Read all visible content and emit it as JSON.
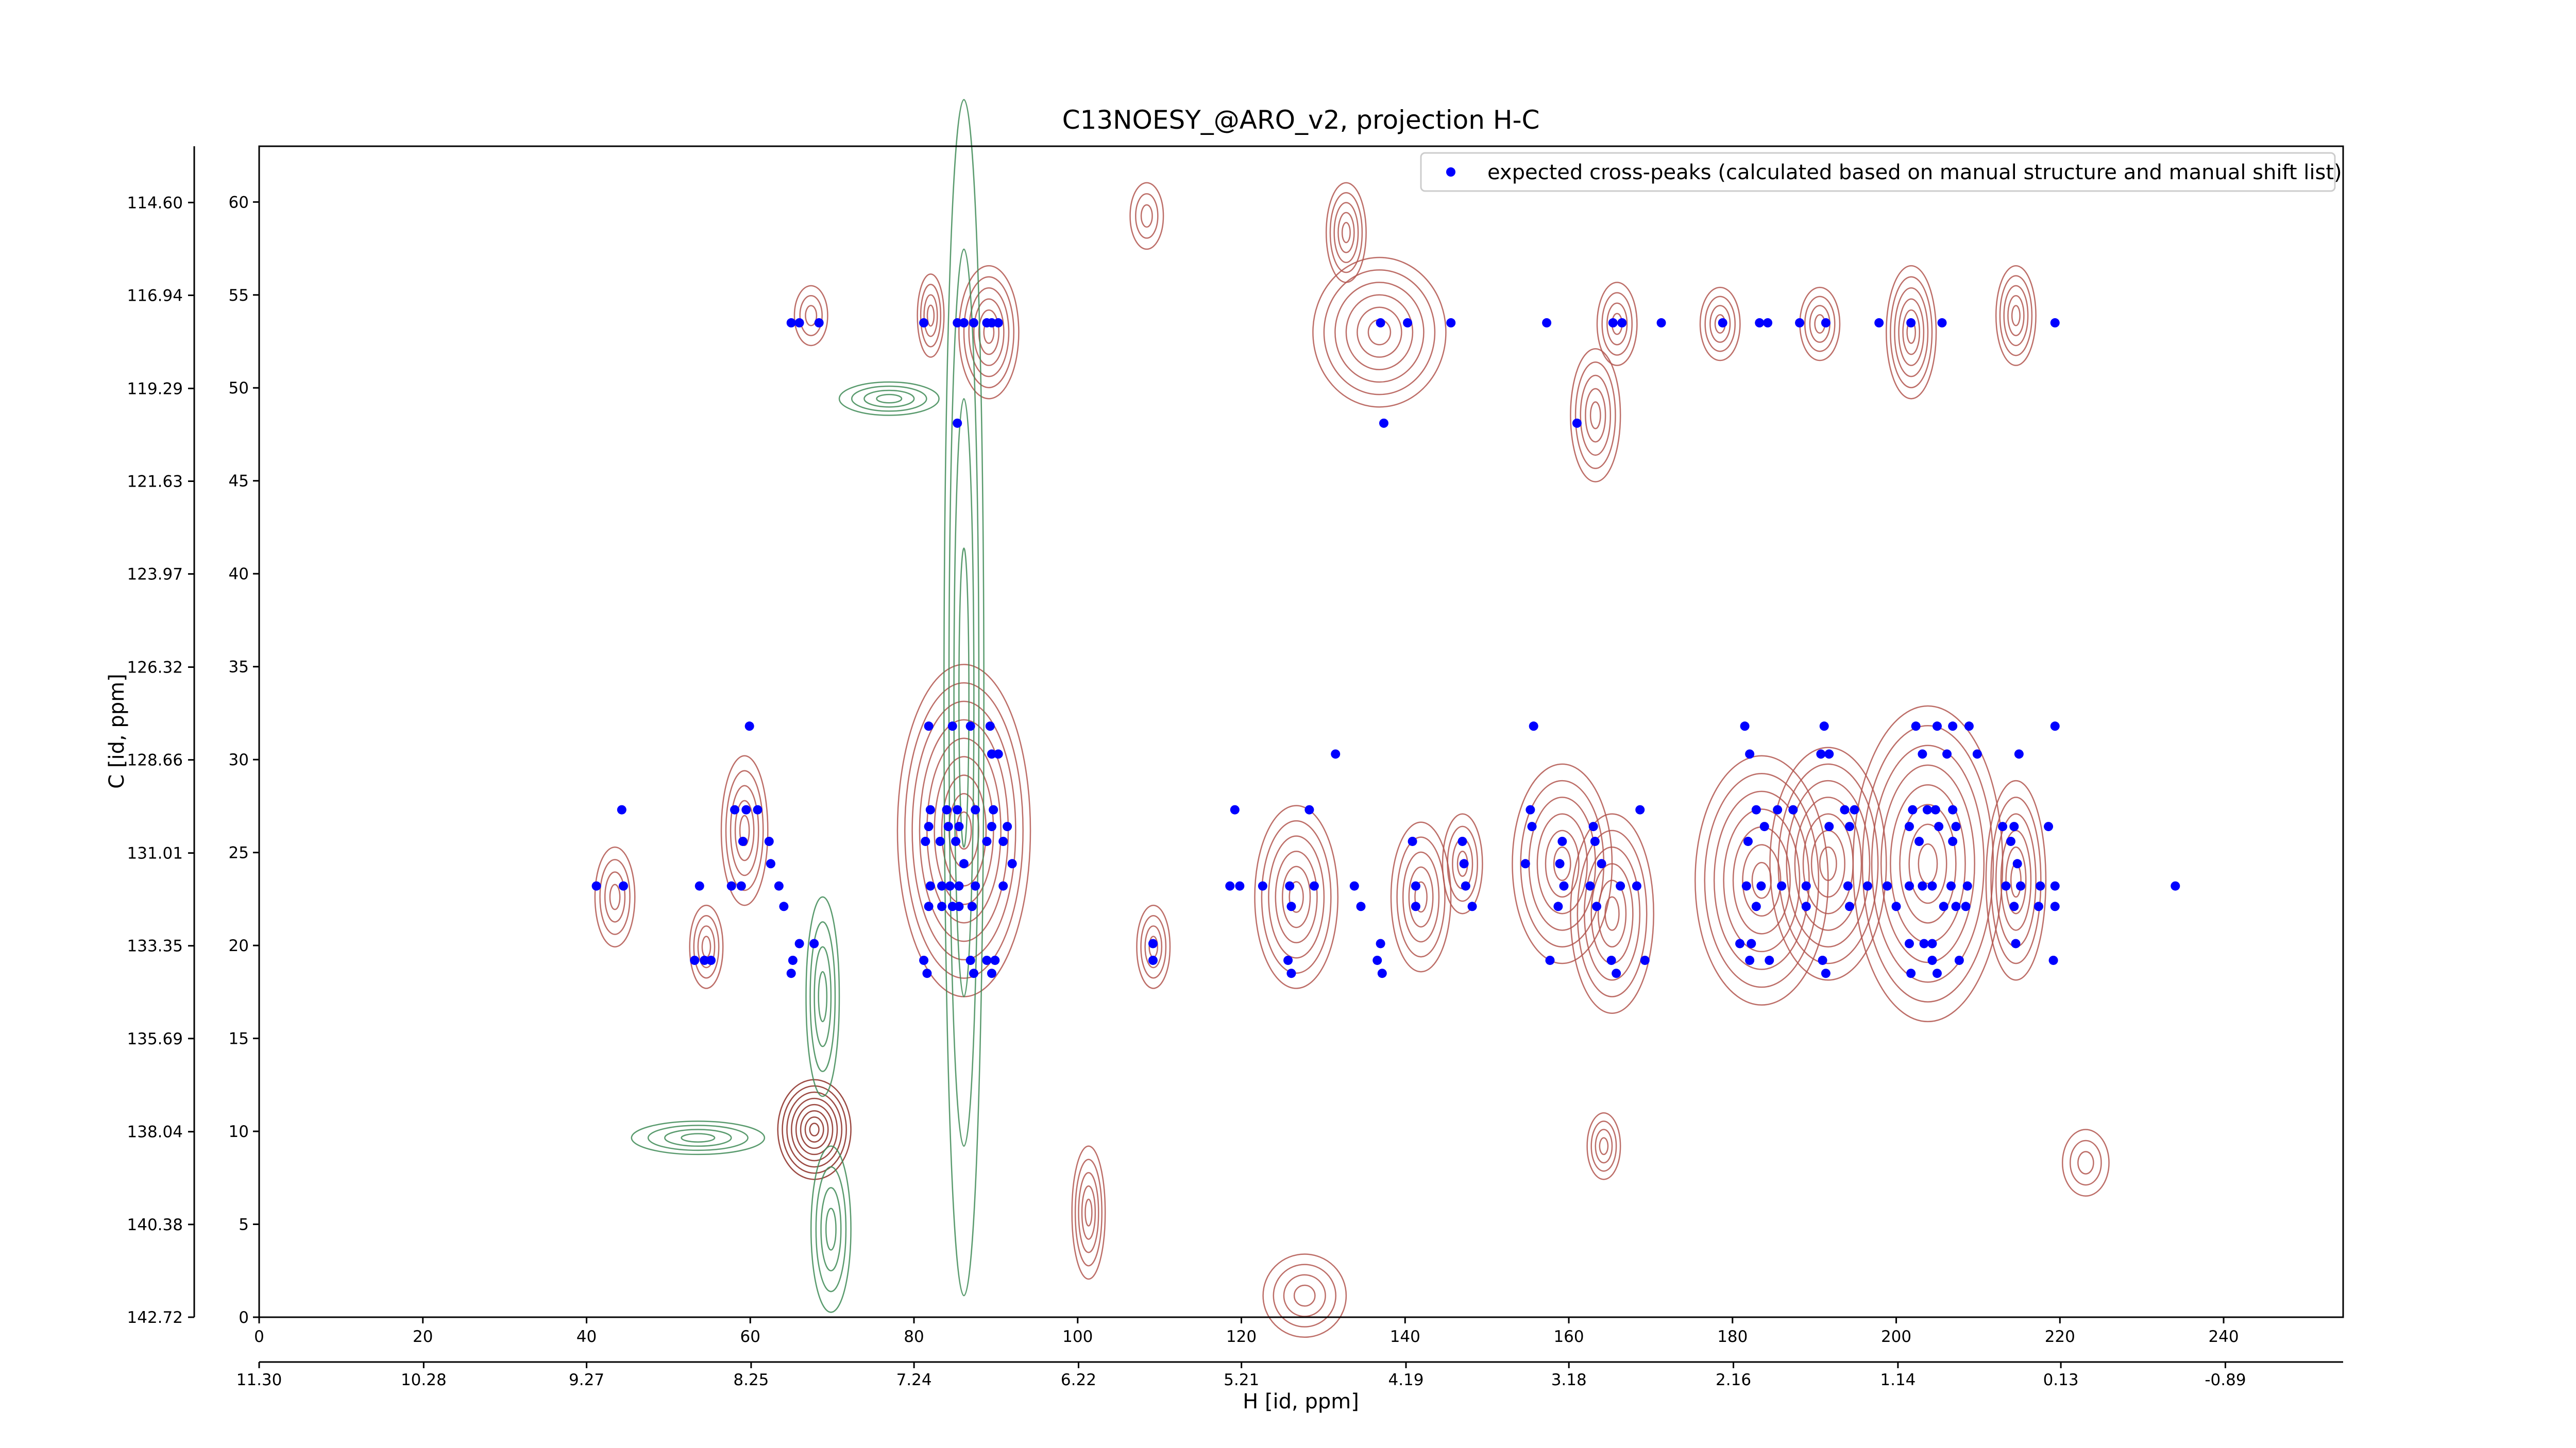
{
  "chart_data": {
    "type": "scatter",
    "title": "C13NOESY_@ARO_v2, projection H-C",
    "x_label": "H [id, ppm]",
    "y_label": "C [id, ppm]",
    "xlim": [
      0,
      254.6
    ],
    "xticks": [
      0,
      20,
      40,
      60,
      80,
      100,
      120,
      140,
      160,
      180,
      200,
      220,
      240
    ],
    "ylim": [
      0,
      63
    ],
    "yticks": [
      0,
      5,
      10,
      15,
      20,
      25,
      30,
      35,
      40,
      45,
      50,
      55,
      60
    ],
    "x2lim": [
      11.3,
      -1.62
    ],
    "x2ticks": [
      {
        "value": 11.3,
        "label": "11.30"
      },
      10.28,
      9.27,
      8.25,
      7.24,
      6.22,
      5.21,
      4.19,
      3.18,
      2.16,
      1.14,
      0.13,
      -0.89
    ],
    "y2lim": [
      142.72,
      113.18
    ],
    "y2ticks": [
      {
        "value": 114.6,
        "label": "114.60"
      },
      116.94,
      119.29,
      121.63,
      123.97,
      126.32,
      128.66,
      131.01,
      133.35,
      135.69,
      138.04,
      140.38,
      142.72
    ],
    "legend": "upper right",
    "series": [
      {
        "name": "expected cross-peaks (calculated based on manual structure and manual shift list)",
        "color": "#0000ff",
        "x": [
          65.0,
          66.0,
          68.4,
          81.2,
          85.3,
          86.1,
          87.3,
          88.9,
          89.5,
          90.3,
          137.0,
          140.3,
          145.6,
          157.3,
          165.4,
          166.5,
          171.3,
          178.8,
          183.3,
          184.3,
          188.2,
          191.4,
          197.9,
          201.8,
          205.6,
          219.4,
          85.3,
          137.4,
          161.0,
          59.9,
          81.8,
          84.7,
          86.9,
          89.3,
          155.7,
          181.5,
          191.2,
          202.4,
          205.0,
          206.9,
          208.9,
          219.4,
          89.5,
          90.3,
          131.5,
          182.1,
          190.8,
          191.8,
          203.2,
          206.2,
          209.9,
          215.0,
          44.3,
          58.1,
          59.5,
          60.9,
          82.0,
          84.0,
          85.3,
          87.5,
          89.7,
          119.2,
          128.3,
          155.3,
          168.7,
          182.9,
          185.5,
          187.4,
          193.7,
          194.9,
          202.0,
          203.8,
          204.8,
          206.9,
          81.8,
          84.2,
          85.5,
          89.5,
          91.4,
          155.5,
          163.0,
          183.9,
          191.8,
          194.3,
          201.6,
          205.2,
          207.3,
          213.0,
          214.4,
          218.6,
          59.1,
          62.3,
          81.4,
          83.2,
          85.1,
          88.9,
          90.9,
          140.9,
          147.0,
          159.2,
          163.2,
          181.9,
          202.8,
          206.9,
          214.0,
          62.5,
          86.1,
          92.0,
          147.2,
          154.7,
          158.9,
          164.0,
          214.8,
          41.2,
          44.5,
          53.8,
          57.7,
          58.9,
          63.5,
          82.0,
          83.4,
          84.4,
          85.5,
          87.5,
          90.9,
          118.6,
          119.8,
          122.6,
          125.9,
          128.9,
          133.8,
          141.3,
          147.4,
          159.4,
          162.6,
          166.3,
          168.3,
          181.7,
          183.5,
          186.0,
          189.0,
          194.1,
          196.5,
          198.9,
          201.6,
          203.2,
          204.4,
          206.7,
          208.7,
          213.4,
          215.2,
          217.6,
          219.4,
          234.1,
          64.1,
          81.8,
          83.4,
          84.7,
          85.5,
          87.1,
          126.1,
          134.6,
          141.3,
          148.2,
          158.7,
          163.4,
          182.9,
          189.0,
          194.3,
          200.0,
          205.8,
          207.3,
          208.5,
          214.4,
          217.4,
          219.4,
          66.0,
          67.8,
          109.2,
          137.0,
          180.9,
          182.3,
          201.6,
          203.4,
          204.4,
          214.6,
          53.2,
          54.4,
          55.2,
          65.2,
          81.2,
          86.9,
          88.9,
          89.9,
          109.2,
          125.7,
          136.6,
          157.7,
          165.2,
          169.3,
          182.1,
          184.5,
          191.0,
          204.4,
          207.7,
          219.2,
          65.0,
          81.6,
          87.3,
          89.5,
          126.1,
          137.2,
          165.8,
          191.4,
          201.8,
          205.0
        ],
        "values": [
          53.5,
          53.5,
          53.5,
          53.5,
          53.5,
          53.5,
          53.5,
          53.5,
          53.5,
          53.5,
          53.5,
          53.5,
          53.5,
          53.5,
          53.5,
          53.5,
          53.5,
          53.5,
          53.5,
          53.5,
          53.5,
          53.5,
          53.5,
          53.5,
          53.5,
          53.5,
          48.1,
          48.1,
          48.1,
          31.8,
          31.8,
          31.8,
          31.8,
          31.8,
          31.8,
          31.8,
          31.8,
          31.8,
          31.8,
          31.8,
          31.8,
          31.8,
          30.3,
          30.3,
          30.3,
          30.3,
          30.3,
          30.3,
          30.3,
          30.3,
          30.3,
          30.3,
          27.3,
          27.3,
          27.3,
          27.3,
          27.3,
          27.3,
          27.3,
          27.3,
          27.3,
          27.3,
          27.3,
          27.3,
          27.3,
          27.3,
          27.3,
          27.3,
          27.3,
          27.3,
          27.3,
          27.3,
          27.3,
          27.3,
          26.4,
          26.4,
          26.4,
          26.4,
          26.4,
          26.4,
          26.4,
          26.4,
          26.4,
          26.4,
          26.4,
          26.4,
          26.4,
          26.4,
          26.4,
          26.4,
          25.6,
          25.6,
          25.6,
          25.6,
          25.6,
          25.6,
          25.6,
          25.6,
          25.6,
          25.6,
          25.6,
          25.6,
          25.6,
          25.6,
          25.6,
          24.4,
          24.4,
          24.4,
          24.4,
          24.4,
          24.4,
          24.4,
          24.4,
          23.2,
          23.2,
          23.2,
          23.2,
          23.2,
          23.2,
          23.2,
          23.2,
          23.2,
          23.2,
          23.2,
          23.2,
          23.2,
          23.2,
          23.2,
          23.2,
          23.2,
          23.2,
          23.2,
          23.2,
          23.2,
          23.2,
          23.2,
          23.2,
          23.2,
          23.2,
          23.2,
          23.2,
          23.2,
          23.2,
          23.2,
          23.2,
          23.2,
          23.2,
          23.2,
          23.2,
          23.2,
          23.2,
          23.2,
          23.2,
          23.2,
          22.1,
          22.1,
          22.1,
          22.1,
          22.1,
          22.1,
          22.1,
          22.1,
          22.1,
          22.1,
          22.1,
          22.1,
          22.1,
          22.1,
          22.1,
          22.1,
          22.1,
          22.1,
          22.1,
          22.1,
          22.1,
          22.1,
          20.1,
          20.1,
          20.1,
          20.1,
          20.1,
          20.1,
          20.1,
          20.1,
          20.1,
          20.1,
          19.2,
          19.2,
          19.2,
          19.2,
          19.2,
          19.2,
          19.2,
          19.2,
          19.2,
          19.2,
          19.2,
          19.2,
          19.2,
          19.2,
          19.2,
          19.2,
          19.2,
          19.2,
          19.2,
          19.2,
          18.5,
          18.5,
          18.5,
          18.5,
          18.5,
          18.5,
          18.5,
          18.5,
          18.5,
          18.5
        ]
      }
    ]
  }
}
